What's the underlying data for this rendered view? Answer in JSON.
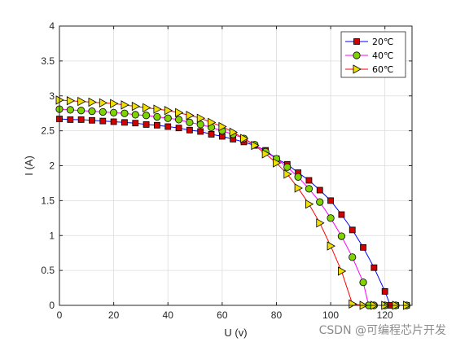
{
  "chart_data": {
    "type": "line",
    "title": "",
    "xlabel": "U (v)",
    "ylabel": "I (A)",
    "xlim": [
      0,
      130
    ],
    "ylim": [
      0,
      4
    ],
    "xticks": [
      0,
      20,
      40,
      60,
      80,
      100,
      120
    ],
    "yticks": [
      0,
      0.5,
      1,
      1.5,
      2,
      2.5,
      3,
      3.5,
      4
    ],
    "ytick_labels": [
      "0",
      "0.5",
      "1",
      "1.5",
      "2",
      "2.5",
      "3",
      "3.5",
      "4"
    ],
    "grid": true,
    "legend_position": "top-right",
    "series": [
      {
        "name": "20℃",
        "color": "#0000ff",
        "marker": "square",
        "marker_fill": "#d40000",
        "points": [
          [
            0,
            2.67
          ],
          [
            4,
            2.66
          ],
          [
            8,
            2.66
          ],
          [
            12,
            2.65
          ],
          [
            16,
            2.64
          ],
          [
            20,
            2.63
          ],
          [
            24,
            2.62
          ],
          [
            28,
            2.61
          ],
          [
            32,
            2.59
          ],
          [
            36,
            2.58
          ],
          [
            40,
            2.56
          ],
          [
            44,
            2.54
          ],
          [
            48,
            2.51
          ],
          [
            52,
            2.49
          ],
          [
            56,
            2.45
          ],
          [
            60,
            2.42
          ],
          [
            64,
            2.38
          ],
          [
            68,
            2.34
          ],
          [
            72,
            2.29
          ],
          [
            76,
            2.22
          ],
          [
            80,
            2.1
          ],
          [
            84,
            2.02
          ],
          [
            88,
            1.9
          ],
          [
            92,
            1.79
          ],
          [
            96,
            1.65
          ],
          [
            100,
            1.5
          ],
          [
            104,
            1.3
          ],
          [
            108,
            1.08
          ],
          [
            112,
            0.83
          ],
          [
            116,
            0.54
          ],
          [
            120,
            0.2
          ],
          [
            122,
            0
          ],
          [
            124,
            0
          ],
          [
            128,
            0
          ]
        ]
      },
      {
        "name": "40℃",
        "color": "#ff00ff",
        "marker": "circle",
        "marker_fill": "#7fd400",
        "points": [
          [
            0,
            2.81
          ],
          [
            4,
            2.8
          ],
          [
            8,
            2.79
          ],
          [
            12,
            2.78
          ],
          [
            16,
            2.77
          ],
          [
            20,
            2.76
          ],
          [
            24,
            2.75
          ],
          [
            28,
            2.73
          ],
          [
            32,
            2.72
          ],
          [
            36,
            2.7
          ],
          [
            40,
            2.68
          ],
          [
            44,
            2.66
          ],
          [
            48,
            2.62
          ],
          [
            52,
            2.59
          ],
          [
            56,
            2.55
          ],
          [
            60,
            2.5
          ],
          [
            64,
            2.45
          ],
          [
            68,
            2.39
          ],
          [
            72,
            2.3
          ],
          [
            76,
            2.2
          ],
          [
            80,
            2.1
          ],
          [
            84,
            1.98
          ],
          [
            88,
            1.84
          ],
          [
            92,
            1.67
          ],
          [
            96,
            1.48
          ],
          [
            100,
            1.25
          ],
          [
            104,
            0.99
          ],
          [
            108,
            0.69
          ],
          [
            112,
            0.33
          ],
          [
            114,
            0
          ],
          [
            116,
            0
          ],
          [
            120,
            0
          ],
          [
            124,
            0
          ],
          [
            128,
            0
          ]
        ]
      },
      {
        "name": "60℃",
        "color": "#ff0000",
        "marker": "triangle-right",
        "marker_fill": "#f0e000",
        "points": [
          [
            0,
            2.94
          ],
          [
            4,
            2.93
          ],
          [
            8,
            2.92
          ],
          [
            12,
            2.91
          ],
          [
            16,
            2.9
          ],
          [
            20,
            2.89
          ],
          [
            24,
            2.87
          ],
          [
            28,
            2.85
          ],
          [
            32,
            2.83
          ],
          [
            36,
            2.81
          ],
          [
            40,
            2.79
          ],
          [
            44,
            2.76
          ],
          [
            48,
            2.72
          ],
          [
            52,
            2.68
          ],
          [
            56,
            2.62
          ],
          [
            60,
            2.56
          ],
          [
            64,
            2.48
          ],
          [
            68,
            2.39
          ],
          [
            72,
            2.29
          ],
          [
            76,
            2.17
          ],
          [
            80,
            2.04
          ],
          [
            84,
            1.88
          ],
          [
            88,
            1.68
          ],
          [
            92,
            1.45
          ],
          [
            96,
            1.18
          ],
          [
            100,
            0.85
          ],
          [
            104,
            0.49
          ],
          [
            108,
            0.02
          ],
          [
            112,
            0
          ],
          [
            116,
            0
          ],
          [
            120,
            0
          ],
          [
            124,
            0
          ],
          [
            128,
            0
          ]
        ]
      }
    ]
  },
  "watermark": "CSDN @可编程芯片开发"
}
